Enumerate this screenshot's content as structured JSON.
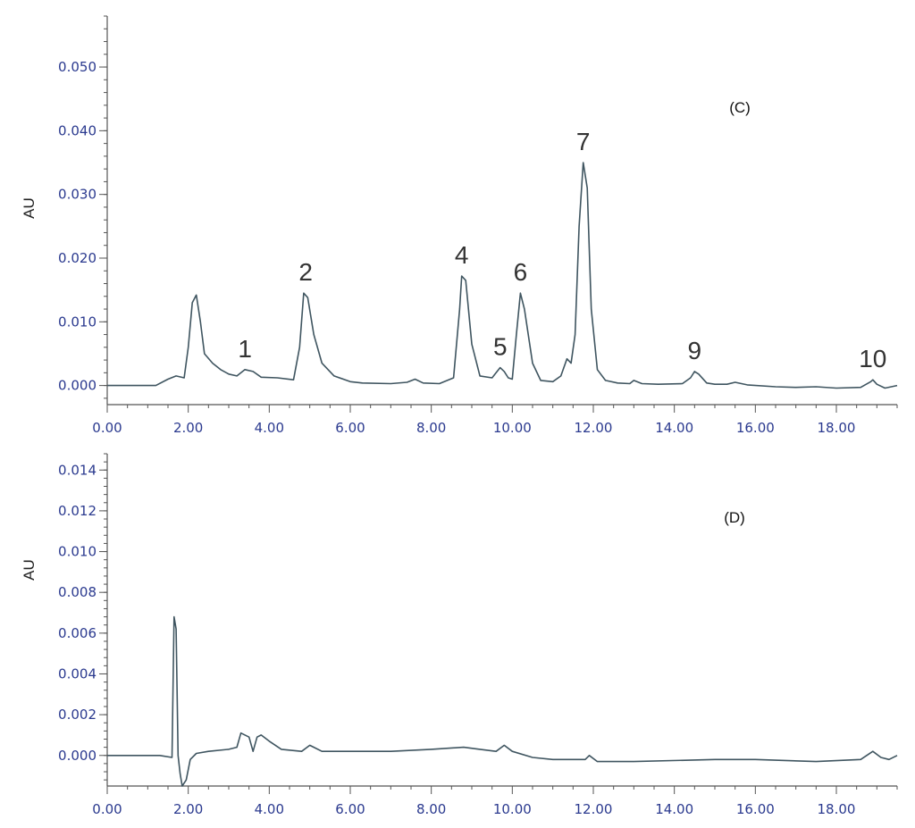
{
  "chart_data": [
    {
      "type": "line",
      "panel_label": "(C)",
      "ylabel": "AU",
      "xlim": [
        0,
        19.5
      ],
      "ylim": [
        -0.003,
        0.058
      ],
      "xticks": [
        "0.00",
        "2.00",
        "4.00",
        "6.00",
        "8.00",
        "10.00",
        "12.00",
        "14.00",
        "16.00",
        "18.00"
      ],
      "yticks": [
        "0.000",
        "0.010",
        "0.020",
        "0.030",
        "0.040",
        "0.050"
      ],
      "series": [
        {
          "x": [
            0,
            1.2,
            1.5,
            1.7,
            1.9,
            2.0,
            2.1,
            2.2,
            2.3,
            2.4,
            2.6,
            2.8,
            3.0,
            3.2,
            3.4,
            3.6,
            3.8,
            4.2,
            4.6,
            4.75,
            4.85,
            4.95,
            5.1,
            5.3,
            5.6,
            6.0,
            6.3,
            7.0,
            7.4,
            7.6,
            7.8,
            8.2,
            8.55,
            8.7,
            8.75,
            8.85,
            9.0,
            9.2,
            9.5,
            9.6,
            9.7,
            9.8,
            9.9,
            10.0,
            10.1,
            10.2,
            10.3,
            10.5,
            10.7,
            11.0,
            11.2,
            11.35,
            11.45,
            11.55,
            11.65,
            11.75,
            11.85,
            11.95,
            12.1,
            12.3,
            12.6,
            12.9,
            13.0,
            13.2,
            13.6,
            14.2,
            14.4,
            14.5,
            14.6,
            14.8,
            15.0,
            15.3,
            15.5,
            15.8,
            16.5,
            17.0,
            17.5,
            18.0,
            18.6,
            18.85,
            18.9,
            19.0,
            19.2,
            19.5
          ],
          "y": [
            0.0,
            0.0,
            0.001,
            0.0015,
            0.0012,
            0.006,
            0.013,
            0.0142,
            0.01,
            0.005,
            0.0035,
            0.0025,
            0.0018,
            0.0015,
            0.0025,
            0.0022,
            0.0013,
            0.0012,
            0.0009,
            0.006,
            0.0145,
            0.0138,
            0.008,
            0.0035,
            0.0015,
            0.0006,
            0.0004,
            0.0003,
            0.0005,
            0.001,
            0.0004,
            0.0003,
            0.0012,
            0.012,
            0.0172,
            0.0165,
            0.0065,
            0.0015,
            0.0012,
            0.002,
            0.0028,
            0.0022,
            0.0012,
            0.001,
            0.008,
            0.0145,
            0.012,
            0.0035,
            0.0008,
            0.0006,
            0.0015,
            0.0042,
            0.0035,
            0.008,
            0.025,
            0.035,
            0.031,
            0.012,
            0.0025,
            0.0008,
            0.0004,
            0.0003,
            0.0008,
            0.0003,
            0.0002,
            0.0003,
            0.0012,
            0.0022,
            0.0018,
            0.0004,
            0.0002,
            0.0002,
            0.0005,
            0.0001,
            -0.0002,
            -0.0003,
            -0.0002,
            -0.0004,
            -0.0003,
            0.0006,
            0.0009,
            0.0002,
            -0.0004,
            0.0
          ]
        }
      ],
      "annotations": [
        {
          "label": "1",
          "x": 3.4,
          "y": 0.0025
        },
        {
          "label": "2",
          "x": 4.9,
          "y": 0.0145
        },
        {
          "label": "4",
          "x": 8.75,
          "y": 0.0172
        },
        {
          "label": "5",
          "x": 9.7,
          "y": 0.0028
        },
        {
          "label": "6",
          "x": 10.2,
          "y": 0.0145
        },
        {
          "label": "7",
          "x": 11.75,
          "y": 0.035
        },
        {
          "label": "9",
          "x": 14.5,
          "y": 0.0022
        },
        {
          "label": "10",
          "x": 18.9,
          "y": 0.0009
        }
      ]
    },
    {
      "type": "line",
      "panel_label": "(D)",
      "ylabel": "AU",
      "xlim": [
        0,
        19.5
      ],
      "ylim": [
        -0.0015,
        0.0148
      ],
      "xticks": [
        "0.00",
        "2.00",
        "4.00",
        "6.00",
        "8.00",
        "10.00",
        "12.00",
        "14.00",
        "16.00",
        "18.00"
      ],
      "yticks": [
        "0.000",
        "0.002",
        "0.004",
        "0.006",
        "0.008",
        "0.010",
        "0.012",
        "0.014"
      ],
      "series": [
        {
          "x": [
            0,
            1.3,
            1.6,
            1.65,
            1.7,
            1.75,
            1.8,
            1.85,
            1.95,
            2.05,
            2.2,
            2.5,
            3.0,
            3.2,
            3.3,
            3.5,
            3.6,
            3.7,
            3.8,
            4.0,
            4.3,
            4.8,
            5.0,
            5.1,
            5.3,
            6.0,
            7.0,
            8.0,
            8.8,
            9.2,
            9.6,
            9.8,
            10.0,
            10.5,
            11.0,
            11.8,
            11.9,
            12.1,
            13.0,
            15.0,
            16.0,
            17.5,
            18.6,
            18.9,
            19.1,
            19.3,
            19.5
          ],
          "y": [
            0.0,
            0.0,
            -0.0001,
            0.0068,
            0.0062,
            0.0,
            -0.0009,
            -0.0015,
            -0.0012,
            -0.0002,
            0.0001,
            0.0002,
            0.0003,
            0.0004,
            0.0011,
            0.0009,
            0.0002,
            0.0009,
            0.001,
            0.0007,
            0.0003,
            0.0002,
            0.0005,
            0.0004,
            0.0002,
            0.0002,
            0.0002,
            0.0003,
            0.0004,
            0.0003,
            0.0002,
            0.0005,
            0.0002,
            -0.0001,
            -0.0002,
            -0.0002,
            0.0,
            -0.0003,
            -0.0003,
            -0.0002,
            -0.0002,
            -0.0003,
            -0.0002,
            0.0002,
            -0.0001,
            -0.0002,
            0.0
          ]
        }
      ]
    }
  ]
}
